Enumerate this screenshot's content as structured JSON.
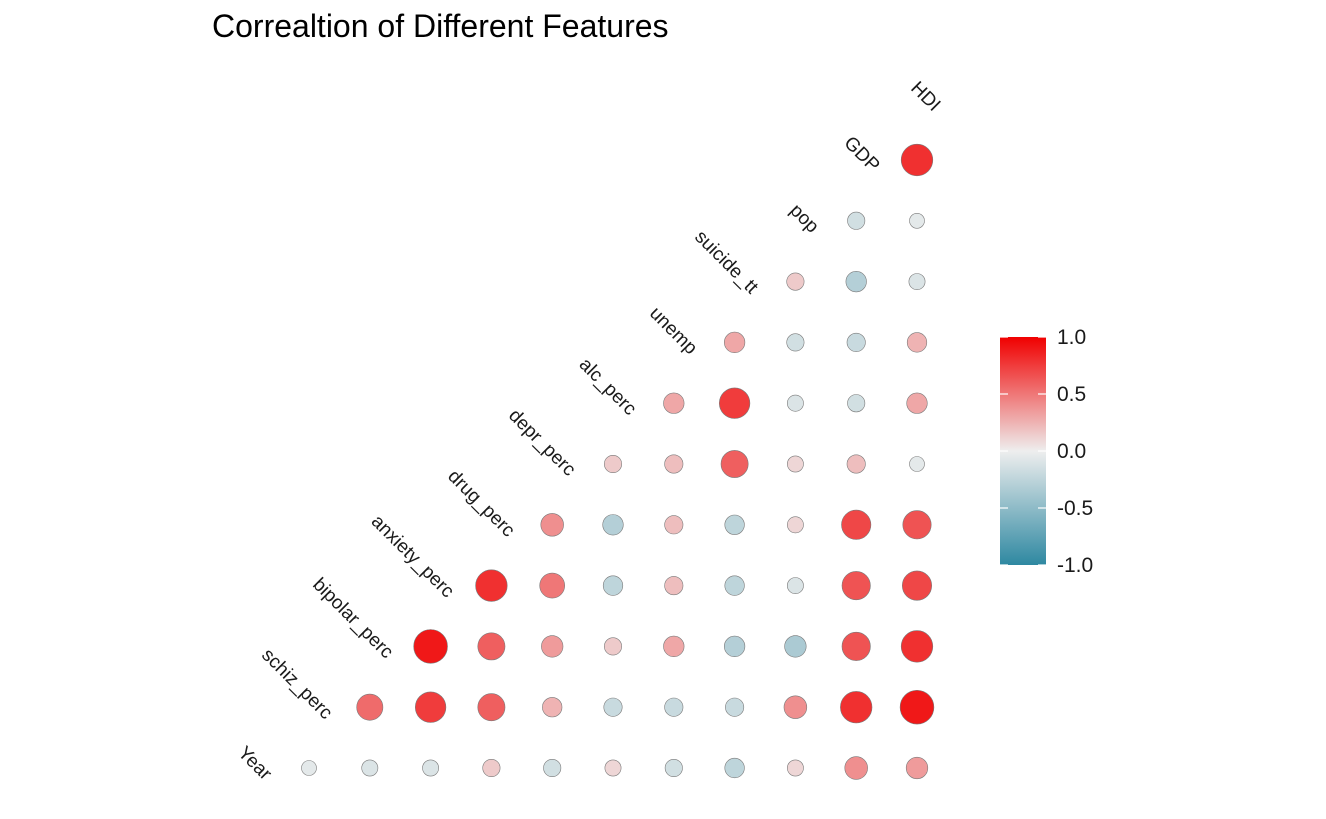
{
  "chart_data": {
    "type": "heatmap",
    "subtype": "correlation-matrix-circles",
    "title": "Correaltion of Different Features",
    "variables": [
      "Year",
      "schiz_perc",
      "bipolar_perc",
      "anxiety_perc",
      "drug_perc",
      "depr_perc",
      "alc_perc",
      "unemp",
      "suicide_tt",
      "pop",
      "GDP",
      "HDI"
    ],
    "correlations": [
      [
        -0.05,
        -0.1,
        -0.1,
        0.15,
        -0.15,
        0.1,
        -0.15,
        -0.25,
        0.1,
        0.4,
        0.35
      ],
      [
        0.55,
        0.75,
        0.6,
        0.25,
        -0.2,
        -0.2,
        -0.2,
        0.4,
        0.8,
        0.9
      ],
      [
        0.9,
        0.6,
        0.35,
        0.15,
        0.3,
        -0.3,
        -0.35,
        0.65,
        0.8
      ],
      [
        0.8,
        0.5,
        -0.25,
        0.2,
        -0.25,
        -0.1,
        0.65,
        0.7
      ],
      [
        0.4,
        -0.3,
        0.2,
        -0.25,
        0.1,
        0.7,
        0.65
      ],
      [
        0.15,
        0.2,
        0.6,
        0.1,
        0.2,
        -0.05
      ],
      [
        0.3,
        0.75,
        -0.1,
        -0.15,
        0.3
      ],
      [
        0.3,
        -0.15,
        -0.2,
        0.25
      ],
      [
        0.15,
        -0.3,
        -0.1
      ],
      [
        -0.15,
        -0.05
      ],
      [
        0.8
      ]
    ],
    "legend": {
      "ticks": [
        "1.0",
        "0.5",
        "0.0",
        "-0.5",
        "-1.0"
      ],
      "range": [
        -1,
        1
      ],
      "placement": "right",
      "colors": {
        "low": "#2e88a1",
        "mid": "#eeeeee",
        "high": "#f00000"
      }
    },
    "grid": false
  }
}
